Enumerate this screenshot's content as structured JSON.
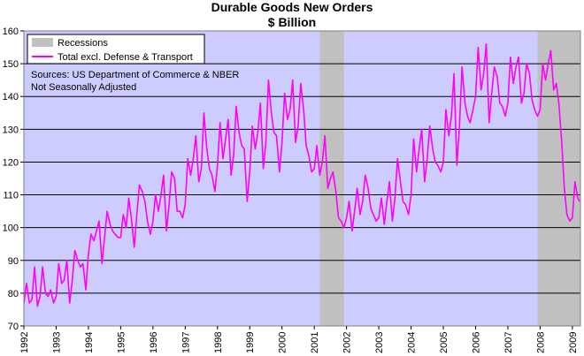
{
  "chart_data": {
    "type": "line",
    "title": "Durable Goods New Orders",
    "subtitle": "$ Billion",
    "ylim": [
      70,
      160
    ],
    "yticks": [
      70,
      80,
      90,
      100,
      110,
      120,
      130,
      140,
      150,
      160
    ],
    "xlim": [
      1992.0,
      2009.25
    ],
    "xticks": [
      "1992",
      "1993",
      "1994",
      "1995",
      "1996",
      "1997",
      "1998",
      "1999",
      "2000",
      "2001",
      "2002",
      "2003",
      "2004",
      "2005",
      "2006",
      "2007",
      "2008",
      "2009"
    ],
    "grid": "horizontal",
    "plot_background": "#ccccff",
    "recessions": [
      {
        "start": 2001.17,
        "end": 2001.92
      },
      {
        "start": 2007.92,
        "end": 2009.25
      }
    ],
    "legend": {
      "placement": "top-left",
      "entries": [
        {
          "label": "Recessions",
          "color": "#c0c0c0",
          "kind": "box"
        },
        {
          "label": "Total excl. Defense & Transport",
          "color": "#ff00ff",
          "kind": "line"
        }
      ]
    },
    "notes": [
      "Sources: US Department of Commerce & NBER",
      "Not Seasonally Adjusted"
    ],
    "series": [
      {
        "name": "Total excl. Defense & Transport",
        "color": "#ff00ff",
        "x": [
          1992.0,
          1992.08,
          1992.17,
          1992.25,
          1992.33,
          1992.42,
          1992.5,
          1992.58,
          1992.67,
          1992.75,
          1992.83,
          1992.92,
          1993.0,
          1993.08,
          1993.17,
          1993.25,
          1993.33,
          1993.42,
          1993.5,
          1993.58,
          1993.67,
          1993.75,
          1993.83,
          1993.92,
          1994.0,
          1994.08,
          1994.17,
          1994.25,
          1994.33,
          1994.42,
          1994.5,
          1994.58,
          1994.67,
          1994.75,
          1994.83,
          1994.92,
          1995.0,
          1995.08,
          1995.17,
          1995.25,
          1995.33,
          1995.42,
          1995.5,
          1995.58,
          1995.67,
          1995.75,
          1995.83,
          1995.92,
          1996.0,
          1996.08,
          1996.17,
          1996.25,
          1996.33,
          1996.42,
          1996.5,
          1996.58,
          1996.67,
          1996.75,
          1996.83,
          1996.92,
          1997.0,
          1997.08,
          1997.17,
          1997.25,
          1997.33,
          1997.42,
          1997.5,
          1997.58,
          1997.67,
          1997.75,
          1997.83,
          1997.92,
          1998.0,
          1998.08,
          1998.17,
          1998.25,
          1998.33,
          1998.42,
          1998.5,
          1998.58,
          1998.67,
          1998.75,
          1998.83,
          1998.92,
          1999.0,
          1999.08,
          1999.17,
          1999.25,
          1999.33,
          1999.42,
          1999.5,
          1999.58,
          1999.67,
          1999.75,
          1999.83,
          1999.92,
          2000.0,
          2000.08,
          2000.17,
          2000.25,
          2000.33,
          2000.42,
          2000.5,
          2000.58,
          2000.67,
          2000.75,
          2000.83,
          2000.92,
          2001.0,
          2001.08,
          2001.17,
          2001.25,
          2001.33,
          2001.42,
          2001.5,
          2001.58,
          2001.67,
          2001.75,
          2001.83,
          2001.92,
          2002.0,
          2002.08,
          2002.17,
          2002.25,
          2002.33,
          2002.42,
          2002.5,
          2002.58,
          2002.67,
          2002.75,
          2002.83,
          2002.92,
          2003.0,
          2003.08,
          2003.17,
          2003.25,
          2003.33,
          2003.42,
          2003.5,
          2003.58,
          2003.67,
          2003.75,
          2003.83,
          2003.92,
          2004.0,
          2004.08,
          2004.17,
          2004.25,
          2004.33,
          2004.42,
          2004.5,
          2004.58,
          2004.67,
          2004.75,
          2004.83,
          2004.92,
          2005.0,
          2005.08,
          2005.17,
          2005.25,
          2005.33,
          2005.42,
          2005.5,
          2005.58,
          2005.67,
          2005.75,
          2005.83,
          2005.92,
          2006.0,
          2006.08,
          2006.17,
          2006.25,
          2006.33,
          2006.42,
          2006.5,
          2006.58,
          2006.67,
          2006.75,
          2006.83,
          2006.92,
          2007.0,
          2007.08,
          2007.17,
          2007.25,
          2007.33,
          2007.42,
          2007.5,
          2007.58,
          2007.67,
          2007.75,
          2007.83,
          2007.92,
          2008.0,
          2008.08,
          2008.17,
          2008.25,
          2008.33,
          2008.42,
          2008.5,
          2008.58,
          2008.67,
          2008.75,
          2008.83,
          2008.92,
          2009.0,
          2009.08,
          2009.17,
          2009.22
        ],
        "y": [
          77,
          83,
          77,
          78,
          88,
          76,
          79,
          88,
          80,
          79,
          81,
          77,
          79,
          89,
          83,
          84,
          90,
          77,
          84,
          93,
          90,
          88,
          89,
          81,
          92,
          98,
          96,
          99,
          102,
          89,
          97,
          105,
          101,
          99,
          98,
          97,
          97,
          104,
          100,
          109,
          103,
          94,
          104,
          113,
          111,
          108,
          102,
          98,
          102,
          110,
          105,
          110,
          116,
          99,
          107,
          117,
          115,
          105,
          105,
          103,
          107,
          121,
          116,
          121,
          128,
          114,
          118,
          135,
          124,
          118,
          116,
          111,
          119,
          132,
          121,
          127,
          133,
          116,
          122,
          137,
          129,
          125,
          124,
          108,
          117,
          131,
          124,
          129,
          138,
          118,
          126,
          145,
          135,
          129,
          128,
          117,
          126,
          141,
          133,
          136,
          145,
          126,
          131,
          144,
          136,
          125,
          122,
          117,
          118,
          125,
          116,
          120,
          128,
          112,
          115,
          117,
          111,
          103,
          102,
          100,
          103,
          108,
          99,
          105,
          112,
          104,
          108,
          116,
          112,
          106,
          104,
          102,
          103,
          109,
          101,
          108,
          114,
          102,
          109,
          121,
          114,
          108,
          107,
          104,
          110,
          127,
          117,
          124,
          130,
          114,
          121,
          131,
          124,
          120,
          119,
          117,
          120,
          136,
          128,
          134,
          147,
          119,
          131,
          149,
          138,
          134,
          132,
          136,
          140,
          155,
          142,
          147,
          156,
          132,
          141,
          149,
          146,
          138,
          137,
          134,
          138,
          152,
          144,
          149,
          152,
          138,
          141,
          150,
          147,
          139,
          136,
          134,
          136,
          150,
          145,
          150,
          154,
          142,
          144,
          138,
          126,
          112,
          104,
          102,
          103,
          114,
          109,
          108
        ]
      }
    ]
  }
}
